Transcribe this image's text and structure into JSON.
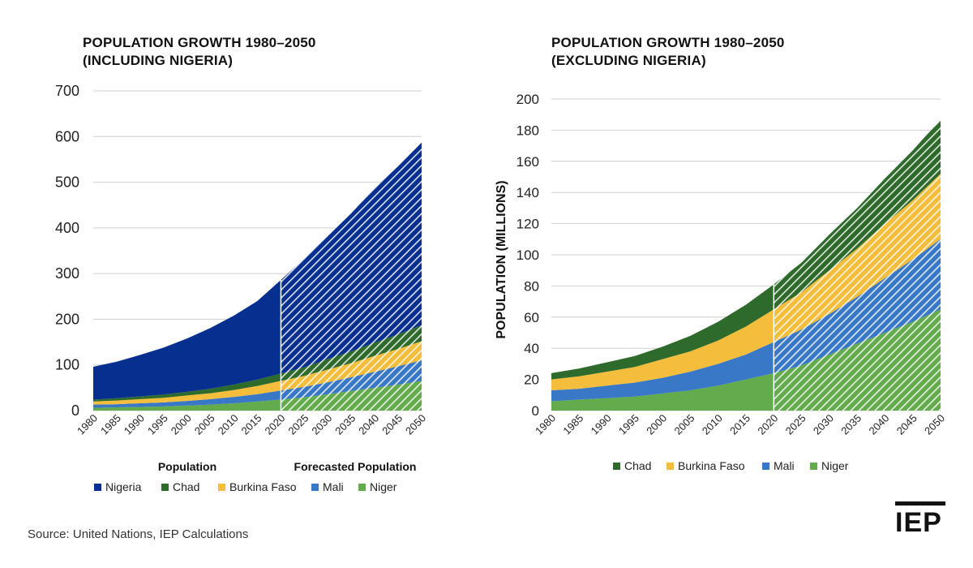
{
  "source_note": "Source: United Nations, IEP Calculations",
  "logo_text": "IEP",
  "colors": {
    "Nigeria": "#062f8f",
    "Chad": "#2e6a2b",
    "Burkina Faso": "#f4bd3c",
    "Mali": "#3978c6",
    "Niger": "#63ab4c"
  },
  "chart_data": [
    {
      "type": "area",
      "stacked": true,
      "title_line1": "POPULATION GROWTH 1980–2050",
      "title_line2": "(INCLUDING NIGERIA)",
      "ylabel": "",
      "ylim": [
        0,
        700
      ],
      "yticks": [
        0,
        100,
        200,
        300,
        400,
        500,
        600,
        700
      ],
      "grid": true,
      "forecast_start": 2020,
      "period_labels": [
        "Population",
        "Forecasted Population"
      ],
      "x": [
        1980,
        1985,
        1990,
        1995,
        2000,
        2005,
        2010,
        2015,
        2020,
        2025,
        2030,
        2035,
        2040,
        2045,
        2050
      ],
      "series": [
        {
          "name": "Niger",
          "values": [
            6,
            7,
            8,
            9,
            11,
            13,
            16,
            20,
            24,
            29,
            36,
            43,
            50,
            57,
            65
          ]
        },
        {
          "name": "Mali",
          "values": [
            7,
            7,
            8,
            9,
            10,
            12,
            14,
            16,
            20,
            23,
            26,
            30,
            35,
            40,
            45
          ]
        },
        {
          "name": "Burkina Faso",
          "values": [
            7,
            8,
            9,
            10,
            12,
            13,
            15,
            18,
            21,
            24,
            28,
            31,
            35,
            38,
            42
          ]
        },
        {
          "name": "Chad",
          "values": [
            4,
            5,
            6,
            7,
            8,
            10,
            12,
            14,
            16,
            19,
            23,
            26,
            29,
            32,
            35
          ]
        },
        {
          "name": "Nigeria",
          "values": [
            72,
            80,
            91,
            103,
            117,
            133,
            151,
            172,
            205,
            238,
            269,
            302,
            338,
            368,
            400
          ]
        }
      ],
      "legend_order": [
        "Nigeria",
        "Chad",
        "Burkina Faso",
        "Mali",
        "Niger"
      ]
    },
    {
      "type": "area",
      "stacked": true,
      "title_line1": "POPULATION GROWTH 1980–2050",
      "title_line2": "(EXCLUDING NIGERIA)",
      "ylabel": "POPULATION (MILLIONS)",
      "ylim": [
        0,
        200
      ],
      "yticks": [
        0,
        20,
        40,
        60,
        80,
        100,
        120,
        140,
        160,
        180,
        200
      ],
      "grid": true,
      "forecast_start": 2020,
      "x": [
        1980,
        1985,
        1990,
        1995,
        2000,
        2005,
        2010,
        2015,
        2020,
        2025,
        2030,
        2035,
        2040,
        2045,
        2050
      ],
      "series": [
        {
          "name": "Niger",
          "values": [
            6,
            7,
            8,
            9,
            11,
            13,
            16,
            20,
            24,
            29,
            36,
            43,
            50,
            57,
            65
          ]
        },
        {
          "name": "Mali",
          "values": [
            7,
            7,
            8,
            9,
            10,
            12,
            14,
            16,
            20,
            23,
            26,
            30,
            35,
            40,
            45
          ]
        },
        {
          "name": "Burkina Faso",
          "values": [
            7,
            8,
            9,
            10,
            12,
            13,
            15,
            18,
            21,
            24,
            28,
            31,
            35,
            38,
            42
          ]
        },
        {
          "name": "Chad",
          "values": [
            4,
            5,
            6,
            7,
            8,
            10,
            12,
            14,
            16,
            19,
            23,
            26,
            29,
            32,
            35
          ]
        }
      ],
      "legend_order": [
        "Chad",
        "Burkina Faso",
        "Mali",
        "Niger"
      ]
    }
  ]
}
